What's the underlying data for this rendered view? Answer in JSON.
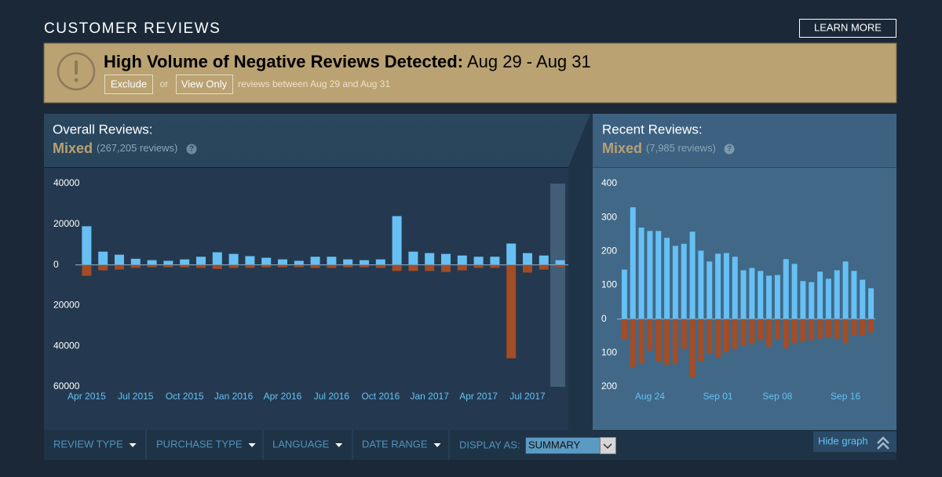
{
  "header": {
    "title": "CUSTOMER REVIEWS",
    "button": "LEARN MORE"
  },
  "banner": {
    "title": "High Volume of Negative Reviews Detected:",
    "dates": "Aug 29 - Aug 31",
    "exclude": "Exclude",
    "or": "or",
    "view_only": "View Only",
    "note": "reviews between Aug 29 and Aug 31"
  },
  "overall": {
    "label": "Overall Reviews:",
    "rating": "Mixed",
    "count": "(267,205 reviews)",
    "help": "?"
  },
  "recent": {
    "label": "Recent Reviews:",
    "rating": "Mixed",
    "count": "(7,985 reviews)",
    "help": "?"
  },
  "filters": {
    "review_type": "REVIEW TYPE",
    "purchase_type": "PURCHASE TYPE",
    "language": "LANGUAGE",
    "date_range": "DATE RANGE",
    "display_as": "DISPLAY AS:",
    "display_value": "SUMMARY",
    "hide_graph": "Hide graph"
  },
  "chart_data": [
    {
      "type": "bar",
      "categories": [
        "Apr 2015",
        null,
        null,
        "Jul 2015",
        null,
        null,
        "Oct 2015",
        null,
        null,
        "Jan 2016",
        null,
        null,
        "Apr 2016",
        null,
        null,
        "Jul 2016",
        null,
        null,
        "Oct 2016",
        null,
        null,
        "Jan 2017",
        null,
        null,
        "Apr 2017",
        null,
        null,
        "Jul 2017",
        null,
        null
      ],
      "series": [
        {
          "color": "#66c0f4",
          "values": [
            19000,
            6500,
            5000,
            3000,
            2300,
            2000,
            2700,
            4000,
            6200,
            5400,
            4300,
            3500,
            2700,
            2000,
            4000,
            4000,
            2700,
            2300,
            2700,
            24000,
            6500,
            5800,
            5400,
            4600,
            4000,
            4000,
            10500,
            5800,
            4600,
            2300
          ]
        },
        {
          "color": "#a34c25",
          "values": [
            -5400,
            -2700,
            -2300,
            -1500,
            -1200,
            -1200,
            -1200,
            -1500,
            -2000,
            -1500,
            -1500,
            -1200,
            -1200,
            -1200,
            -1500,
            -1500,
            -1200,
            -1200,
            -1500,
            -3000,
            -3000,
            -3000,
            -3500,
            -2700,
            -1500,
            -1500,
            -46000,
            -3800,
            -2300,
            -1200
          ]
        }
      ],
      "ylim": [
        -60000,
        40000
      ],
      "yticks": [
        40000,
        20000,
        0,
        {
          "value": -20000,
          "label": "20000"
        },
        {
          "value": -40000,
          "label": "40000"
        },
        {
          "value": -60000,
          "label": "60000"
        }
      ]
    },
    {
      "type": "bar",
      "categories": [
        null,
        null,
        null,
        "Aug 24",
        null,
        null,
        null,
        null,
        null,
        null,
        null,
        "Sep 01",
        null,
        null,
        null,
        null,
        null,
        null,
        "Sep 08",
        null,
        null,
        null,
        null,
        null,
        null,
        null,
        "Sep 16",
        null,
        null,
        null
      ],
      "series": [
        {
          "color": "#66c0f4",
          "values": [
            146,
            330,
            270,
            260,
            260,
            240,
            216,
            222,
            258,
            202,
            170,
            193,
            195,
            184,
            144,
            151,
            142,
            128,
            130,
            177,
            163,
            112,
            109,
            140,
            119,
            144,
            170,
            142,
            116,
            91
          ]
        },
        {
          "color": "#a34c25",
          "values": [
            -60,
            -142,
            -130,
            -93,
            -126,
            -135,
            -133,
            -88,
            -172,
            -126,
            -102,
            -112,
            -98,
            -88,
            -79,
            -74,
            -63,
            -81,
            -60,
            -86,
            -70,
            -67,
            -63,
            -58,
            -53,
            -58,
            -70,
            -49,
            -47,
            -40
          ]
        }
      ],
      "ylim": [
        -200,
        400
      ],
      "yticks": [
        400,
        300,
        200,
        100,
        0,
        {
          "value": -100,
          "label": "100"
        },
        {
          "value": -200,
          "label": "200"
        }
      ]
    }
  ]
}
